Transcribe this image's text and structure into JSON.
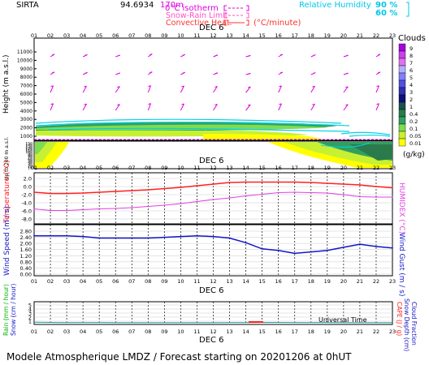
{
  "header": {
    "station": "SIRTA",
    "coords": "94.6934",
    "elev": "170m",
    "legend_isotherm": "0°C isotherm",
    "legend_snowrain": "Snow-Rain Limit",
    "legend_convective": "Convective Heat.",
    "convective_unit": "(°C/minute)",
    "rh_label": "Relative Humidity",
    "rh_90": "90 %",
    "rh_60": "60 %"
  },
  "hours": [
    "01",
    "02",
    "03",
    "04",
    "05",
    "06",
    "07",
    "08",
    "09",
    "10",
    "11",
    "12",
    "13",
    "14",
    "15",
    "16",
    "17",
    "18",
    "19",
    "20",
    "21",
    "22",
    "23"
  ],
  "panels": {
    "clouds": {
      "date_label": "DEC  6",
      "y_label_upper": "Height  (m  a.s.l.)",
      "y_label_lower": "Up to 200 m a.s.l.",
      "y_ticks_upper": [
        "11000",
        "10000",
        "9000",
        "8000",
        "7000",
        "6000",
        "5000",
        "4000",
        "3000",
        "2000",
        "1000"
      ],
      "y_ticks_lower": [
        "150",
        "140",
        "130",
        "120",
        "110",
        "100",
        "90",
        "80",
        "70",
        "60",
        "50",
        "40",
        "30",
        "20",
        "10"
      ]
    },
    "colorbar": {
      "title": "Clouds",
      "ticks": [
        "9",
        "8",
        "7",
        "6",
        "5",
        "4",
        "3",
        "2",
        "1",
        "0.4",
        "0.2",
        "0.1",
        "0.05",
        "0.01"
      ],
      "unit": "(g/kg)"
    },
    "temperature": {
      "date_label": "DEC  6",
      "y_label_left": "Temperature (°C)",
      "y_label_right": "HUMIDEX (°C)",
      "y_ticks": [
        "2.0",
        "0.0",
        "-2.0",
        "-4.0",
        "-6.0",
        "-8.0"
      ]
    },
    "wind": {
      "y_label_left": "Wind Speed (m / s)",
      "y_label_right": "Wind Gust (m / s)",
      "y_ticks": [
        "2.80",
        "2.40",
        "2.00",
        "1.60",
        "1.20",
        "0.80",
        "0.40",
        "0.00"
      ]
    },
    "precip": {
      "date_label": "DEC  6",
      "y_label_left_1": "Rain (mm / hour)",
      "y_label_left_2": "Snow (cm / hour)",
      "y_label_right_1": "CAPE (J / g)",
      "y_label_right_2": "Snow Depth (cm)",
      "y_label_right_3": "Cloud Fraction",
      "y_ticks": [
        "5",
        "4",
        "3",
        "2",
        "1"
      ],
      "x_axis_label": "Universal Time"
    }
  },
  "footer": "Modele Atmospherique LMDZ / Forecast starting on 20201206 at 0hUT",
  "chart_data": [
    {
      "type": "line",
      "title": "",
      "xlabel": "Universal Time",
      "ylabel": "Temperature (°C)",
      "x": [
        "01",
        "02",
        "03",
        "04",
        "05",
        "06",
        "07",
        "08",
        "09",
        "10",
        "11",
        "12",
        "13",
        "14",
        "15",
        "16",
        "17",
        "18",
        "19",
        "20",
        "21",
        "22",
        "23"
      ],
      "ylim": [
        -8,
        2
      ],
      "series": [
        {
          "name": "Temperature",
          "values": [
            -1.4,
            -1.7,
            -1.7,
            -1.6,
            -1.4,
            -1.2,
            -1.0,
            -0.8,
            -0.5,
            -0.2,
            0.2,
            0.6,
            1.0,
            1.1,
            1.1,
            1.1,
            1.1,
            1.0,
            0.8,
            0.6,
            0.4,
            0.0,
            -0.3
          ]
        },
        {
          "name": "HUMIDEX",
          "values": [
            -5.5,
            -5.9,
            -5.9,
            -5.7,
            -5.5,
            -5.4,
            -5.2,
            -4.9,
            -4.6,
            -4.2,
            -3.7,
            -3.2,
            -2.8,
            -2.3,
            -1.9,
            -1.5,
            -1.4,
            -1.5,
            -1.6,
            -2.0,
            -2.5,
            -2.6,
            -2.6
          ]
        }
      ]
    },
    {
      "type": "line",
      "title": "",
      "xlabel": "Universal Time",
      "ylabel": "Wind Speed (m / s)",
      "x": [
        "01",
        "02",
        "03",
        "04",
        "05",
        "06",
        "07",
        "08",
        "09",
        "10",
        "11",
        "12",
        "13",
        "14",
        "15",
        "16",
        "17",
        "18",
        "19",
        "20",
        "21",
        "22",
        "23"
      ],
      "ylim": [
        0,
        2.8
      ],
      "series": [
        {
          "name": "Wind Speed",
          "values": [
            2.5,
            2.5,
            2.5,
            2.45,
            2.35,
            2.35,
            2.35,
            2.35,
            2.4,
            2.45,
            2.5,
            2.45,
            2.35,
            2.05,
            1.65,
            1.55,
            1.35,
            1.45,
            1.55,
            1.75,
            1.95,
            1.8,
            1.7
          ]
        }
      ]
    },
    {
      "type": "line",
      "title": "",
      "xlabel": "Universal Time",
      "ylabel": "Rain (mm / hour)",
      "x": [
        "01",
        "02",
        "03",
        "04",
        "05",
        "06",
        "07",
        "08",
        "09",
        "10",
        "11",
        "12",
        "13",
        "14",
        "15",
        "16",
        "17",
        "18",
        "19",
        "20",
        "21",
        "22",
        "23"
      ],
      "ylim": [
        0,
        5
      ],
      "series": [
        {
          "name": "Cloud Fraction",
          "values": [
            0.15,
            0.12,
            0.1,
            0.1,
            0.08,
            0.07,
            0.06,
            0.06,
            0.05,
            0.05,
            0.05,
            0.06,
            0.08,
            0.1,
            0.12,
            0.12,
            0.1,
            0.1,
            0.08,
            0.07,
            0.06,
            0.05,
            0.05
          ]
        }
      ]
    }
  ],
  "colors": {
    "temperature": "#ff2020",
    "humidex": "#e040e0",
    "wind": "#1414c8",
    "isotherm": "#e020e0",
    "rh90": "#00c8e6",
    "rain_label": "#00b000",
    "cape_label": "#ff0000"
  }
}
